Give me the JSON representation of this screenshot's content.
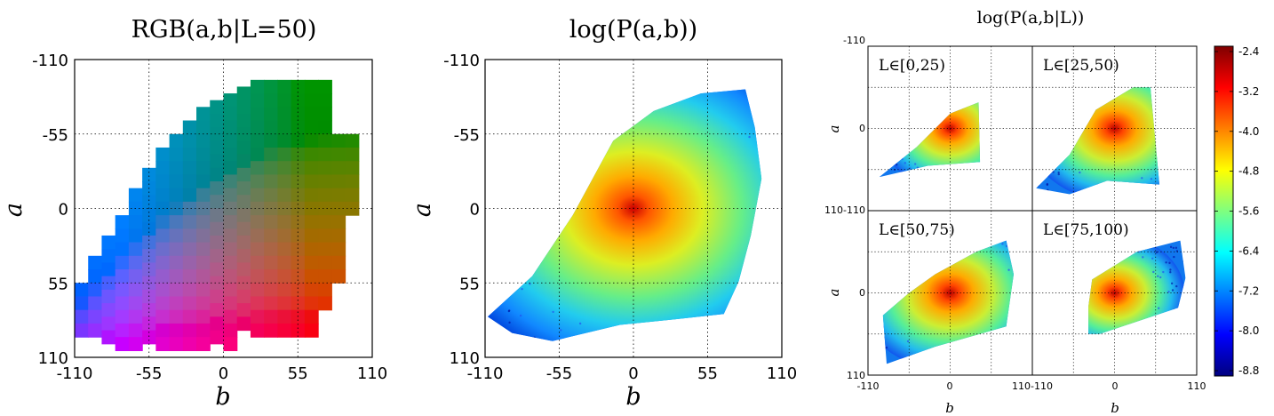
{
  "chart_data": [
    {
      "type": "heatmap",
      "title": "RGB(a,b|L=50)",
      "xlabel": "b",
      "ylabel": "a",
      "xlim": [
        -110,
        110
      ],
      "ylim": [
        110,
        -110
      ],
      "xticks": [
        "-110",
        "-55",
        "0",
        "55",
        "110"
      ],
      "yticks": [
        "-110",
        "-55",
        "0",
        "55",
        "110"
      ],
      "grid": true,
      "colorspace": "CIELAB",
      "L": 50,
      "gamut_columns": [
        {
          "b": -110,
          "a_min": 55,
          "a_max": 90
        },
        {
          "b": -100,
          "a_min": 35,
          "a_max": 90
        },
        {
          "b": -90,
          "a_min": 20,
          "a_max": 100
        },
        {
          "b": -80,
          "a_min": 5,
          "a_max": 100
        },
        {
          "b": -70,
          "a_min": -15,
          "a_max": 100
        },
        {
          "b": -60,
          "a_min": -30,
          "a_max": 100
        },
        {
          "b": -50,
          "a_min": -45,
          "a_max": 100
        },
        {
          "b": -40,
          "a_min": -55,
          "a_max": 100
        },
        {
          "b": -30,
          "a_min": -65,
          "a_max": 100
        },
        {
          "b": -20,
          "a_min": -75,
          "a_max": 100
        },
        {
          "b": -10,
          "a_min": -80,
          "a_max": 100
        },
        {
          "b": 0,
          "a_min": -85,
          "a_max": 100
        },
        {
          "b": 10,
          "a_min": -90,
          "a_max": 90
        },
        {
          "b": 20,
          "a_min": -95,
          "a_max": 90
        },
        {
          "b": 30,
          "a_min": -95,
          "a_max": 90
        },
        {
          "b": 40,
          "a_min": -95,
          "a_max": 90
        },
        {
          "b": 50,
          "a_min": -95,
          "a_max": 90
        },
        {
          "b": 60,
          "a_min": -95,
          "a_max": 90
        },
        {
          "b": 70,
          "a_min": -95,
          "a_max": 70
        },
        {
          "b": 80,
          "a_min": -55,
          "a_max": 55
        },
        {
          "b": 90,
          "a_min": -55,
          "a_max": 5
        }
      ]
    },
    {
      "type": "heatmap",
      "title": "log(P(a,b))",
      "xlabel": "b",
      "ylabel": "a",
      "xlim": [
        -110,
        110
      ],
      "ylim": [
        110,
        -110
      ],
      "xticks": [
        "-110",
        "-55",
        "0",
        "55",
        "110"
      ],
      "yticks": [
        "-110",
        "-55",
        "0",
        "55",
        "110"
      ],
      "grid": true,
      "peak": {
        "a": 0,
        "b": 0
      },
      "region_outline": [
        {
          "b": -108,
          "a": 80
        },
        {
          "b": -75,
          "a": 50
        },
        {
          "b": -45,
          "a": 5
        },
        {
          "b": -15,
          "a": -50
        },
        {
          "b": 15,
          "a": -72
        },
        {
          "b": 50,
          "a": -85
        },
        {
          "b": 83,
          "a": -88
        },
        {
          "b": 90,
          "a": -60
        },
        {
          "b": 95,
          "a": -22
        },
        {
          "b": 87,
          "a": 20
        },
        {
          "b": 78,
          "a": 54
        },
        {
          "b": 67,
          "a": 78
        },
        {
          "b": 30,
          "a": 82
        },
        {
          "b": -10,
          "a": 86
        },
        {
          "b": -60,
          "a": 98
        },
        {
          "b": -90,
          "a": 92
        }
      ]
    },
    {
      "type": "heatmap",
      "title": "log(P(a,b|L))",
      "xlabel": "b",
      "ylabel": "a",
      "xlim": [
        -110,
        110
      ],
      "ylim": [
        110,
        -110
      ],
      "xtick_labels": [
        "-110",
        "0",
        "110-110",
        "0",
        "110"
      ],
      "ytick_labels": [
        "-110",
        "0",
        "110-110",
        "0",
        "110"
      ],
      "grid": true,
      "panels": [
        {
          "label": "L∈[0,25)",
          "peak": {
            "a": 0,
            "b": 0
          },
          "region_outline": [
            {
              "b": -95,
              "a": 65
            },
            {
              "b": -45,
              "a": 25
            },
            {
              "b": 0,
              "a": -20
            },
            {
              "b": 38,
              "a": -35
            },
            {
              "b": 40,
              "a": 45
            },
            {
              "b": -30,
              "a": 50
            }
          ]
        },
        {
          "label": "L∈[25,50)",
          "peak": {
            "a": 0,
            "b": 0
          },
          "region_outline": [
            {
              "b": -105,
              "a": 80
            },
            {
              "b": -60,
              "a": 35
            },
            {
              "b": -25,
              "a": -25
            },
            {
              "b": 25,
              "a": -55
            },
            {
              "b": 48,
              "a": -55
            },
            {
              "b": 60,
              "a": 75
            },
            {
              "b": -10,
              "a": 70
            },
            {
              "b": -60,
              "a": 88
            }
          ]
        },
        {
          "label": "L∈[50,75)",
          "peak": {
            "a": 0,
            "b": 0
          },
          "region_outline": [
            {
              "b": -90,
              "a": 30
            },
            {
              "b": -55,
              "a": 0
            },
            {
              "b": -20,
              "a": -25
            },
            {
              "b": 35,
              "a": -55
            },
            {
              "b": 75,
              "a": -70
            },
            {
              "b": 85,
              "a": -25
            },
            {
              "b": 75,
              "a": 45
            },
            {
              "b": -20,
              "a": 72
            },
            {
              "b": -85,
              "a": 95
            }
          ]
        },
        {
          "label": "L∈[75,100)",
          "peak": {
            "a": 0,
            "b": 0
          },
          "region_outline": [
            {
              "b": -35,
              "a": 18
            },
            {
              "b": -30,
              "a": -18
            },
            {
              "b": 30,
              "a": -55
            },
            {
              "b": 88,
              "a": -70
            },
            {
              "b": 95,
              "a": -20
            },
            {
              "b": 85,
              "a": 20
            },
            {
              "b": -20,
              "a": 55
            },
            {
              "b": -35,
              "a": 55
            }
          ]
        }
      ],
      "colorbar": {
        "ticks": [
          "-2.4",
          "-3.2",
          "-4.0",
          "-4.8",
          "-5.6",
          "-6.4",
          "-7.2",
          "-8.0",
          "-8.8"
        ],
        "colormap": "jet",
        "colors": [
          "#00007f",
          "#0000ff",
          "#007fff",
          "#00ffff",
          "#7fff7f",
          "#ffff00",
          "#ff7f00",
          "#ff0000",
          "#7f0000"
        ]
      }
    }
  ]
}
